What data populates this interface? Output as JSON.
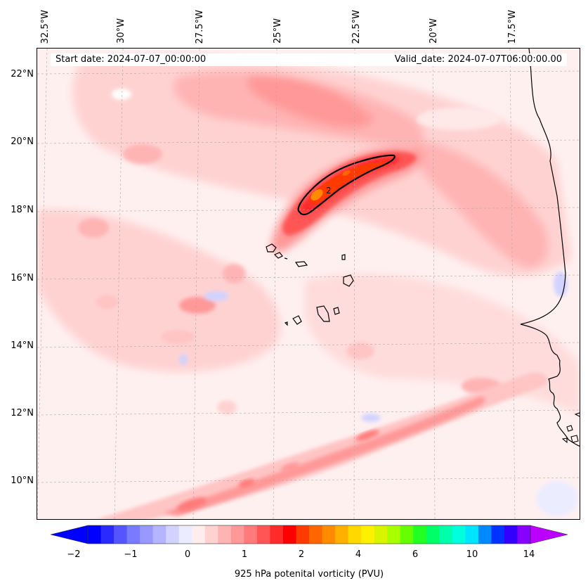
{
  "map": {
    "start_date": "Start date: 2024-07-07_00:00:00",
    "valid_date": "Valid_date: 2024-07-07T06:00:00.00",
    "lon_labels": [
      "32.5°W",
      "30°W",
      "27.5°W",
      "25°W",
      "22.5°W",
      "20°W",
      "17.5°W"
    ],
    "lat_labels": [
      "22°N",
      "20°N",
      "18°N",
      "16°N",
      "14°N",
      "12°N",
      "10°N"
    ],
    "contour_label": "2",
    "colors": {
      "background": "#fff0f0",
      "land_outline": "#000000",
      "ocean_fill": "#fff0f0"
    }
  },
  "colorbar": {
    "label": "925 hPa potenital vorticity (PVU)",
    "tick_labels": [
      "−2",
      "−1",
      "0",
      "1",
      "2",
      "4",
      "6",
      "10",
      "14"
    ],
    "colors": [
      "#0000ff",
      "#2a2aff",
      "#5555ff",
      "#7a7aff",
      "#9898ff",
      "#b4b4ff",
      "#d2d2ff",
      "#ececff",
      "#ffecec",
      "#ffd2d2",
      "#ffb4b4",
      "#ff9898",
      "#ff7a7a",
      "#ff5555",
      "#ff2a2a",
      "#ff0000",
      "#ff3a00",
      "#ff6600",
      "#ff8c00",
      "#ffb000",
      "#ffd800",
      "#fff000",
      "#d8f500",
      "#a8ff00",
      "#66ff00",
      "#22ff22",
      "#00ff66",
      "#00ffaa",
      "#00ffdd",
      "#00e5ff",
      "#0088ff",
      "#0033ff",
      "#3300ff",
      "#8800ff"
    ],
    "extend_low_color": "#0000ff",
    "extend_high_color": "#bb00ff"
  },
  "chart_data": {
    "type": "heatmap",
    "variable": "925 hPa potenital vorticity (PVU)",
    "levels": [
      -2,
      -1,
      0,
      1,
      2,
      4,
      6,
      10,
      14
    ],
    "extent": {
      "lon": [
        -33,
        -16.5
      ],
      "lat": [
        8.9,
        22.8
      ]
    },
    "lat_ticks": [
      10,
      12,
      14,
      16,
      18,
      20,
      22
    ],
    "lon_ticks": [
      -32.5,
      -30,
      -27.5,
      -25,
      -22.5,
      -20,
      -17.5
    ],
    "contour_value": 2,
    "grid": true
  }
}
